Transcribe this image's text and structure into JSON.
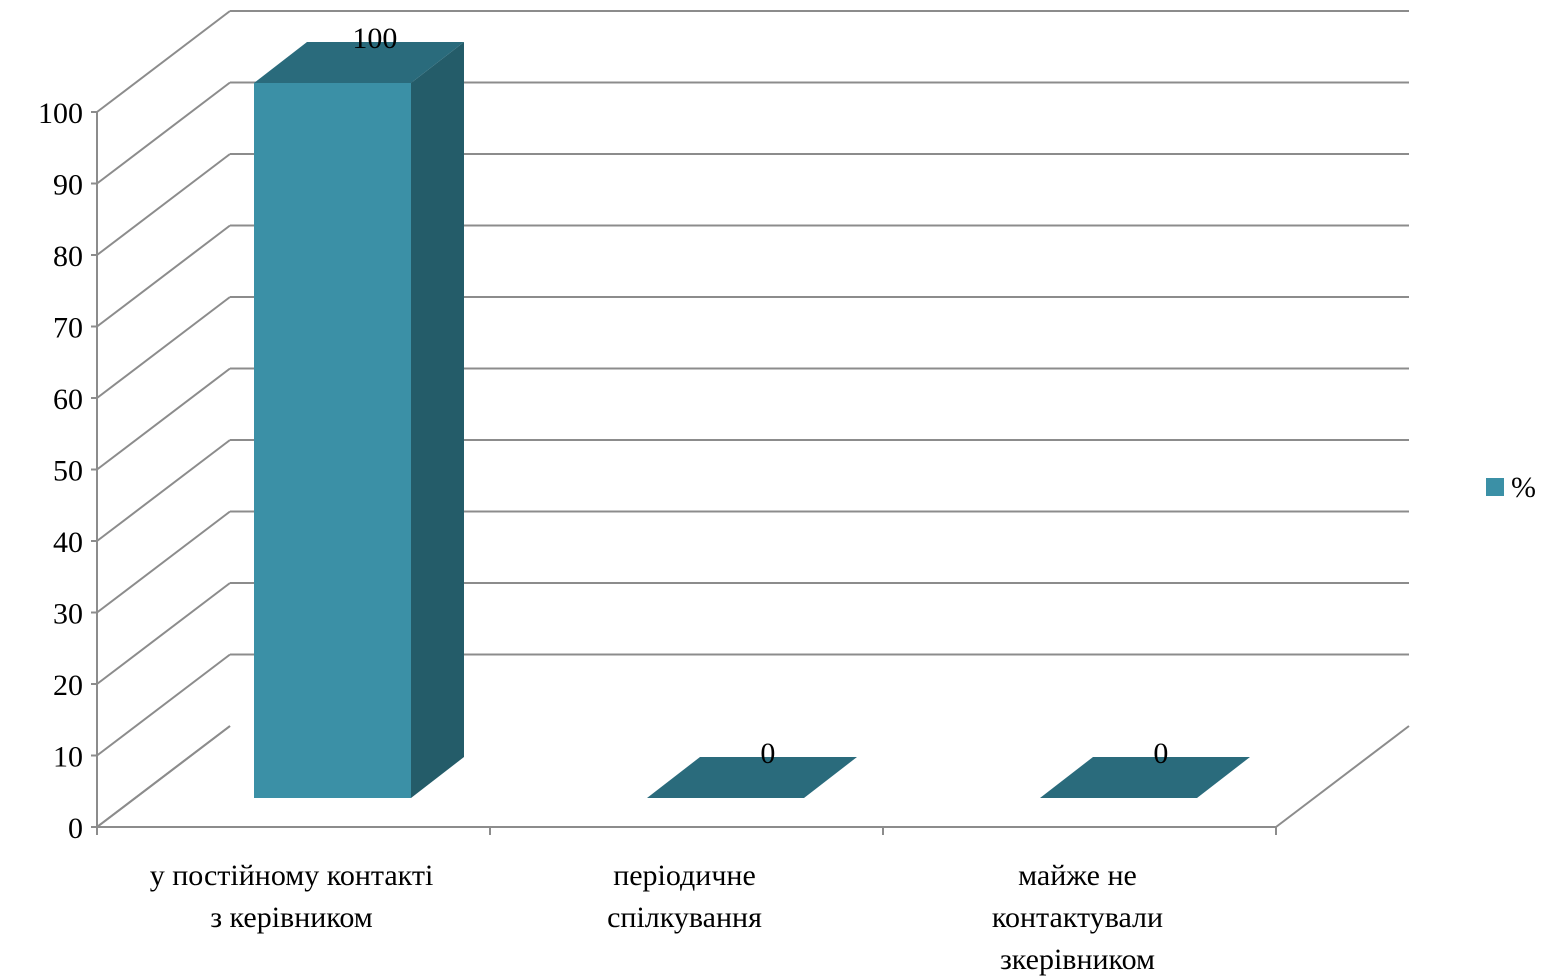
{
  "chart_data": {
    "type": "bar",
    "style": "3d-column",
    "categories": [
      [
        "у постійному контакті",
        "з керівником"
      ],
      [
        "періодичне",
        "спілкування"
      ],
      [
        "майже не",
        "контактували",
        "зкерівником"
      ]
    ],
    "series": [
      {
        "name": "%",
        "values": [
          100,
          0,
          0
        ],
        "color": "#3b90a6"
      }
    ],
    "data_labels": [
      "100",
      "0",
      "0"
    ],
    "ylim": [
      0,
      100
    ],
    "yticks": [
      0,
      10,
      20,
      30,
      40,
      50,
      60,
      70,
      80,
      90,
      100
    ],
    "grid": true,
    "legend_position": "right",
    "colors": {
      "front": "#3b90a6",
      "top": "#2a6b7c",
      "side": "#245c69",
      "grid": "#8c8c8c"
    }
  }
}
